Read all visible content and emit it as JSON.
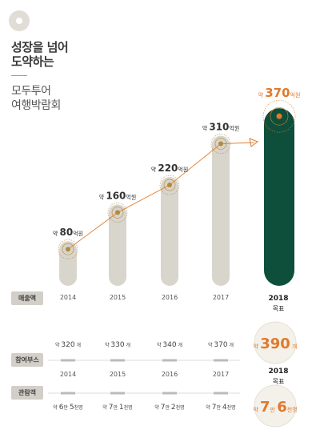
{
  "brand": {
    "logo_icon": "circle-logo-icon"
  },
  "headline": {
    "line1": "성장을 넘어",
    "line2": "도약하는"
  },
  "subhead": {
    "line1": "모두투어",
    "line2": "여행박람회"
  },
  "colors": {
    "pillar": "#d8d5cc",
    "target_pillar": "#0e4f3c",
    "accent": "#e07a2c",
    "gold": "#b48a3e"
  },
  "labels": {
    "revenue": "매출액",
    "booths": "참여부스",
    "visitors": "관람객",
    "target_word": "목표",
    "approx": "약",
    "eok": "억원",
    "booth_unit": "개",
    "man": "만",
    "people": "천명"
  },
  "chart_data": {
    "type": "bar",
    "categories": [
      "2014",
      "2015",
      "2016",
      "2017",
      "2018"
    ],
    "target_category": "2018",
    "series": [
      {
        "name": "매출액",
        "unit": "억원",
        "values": [
          80,
          160,
          220,
          310,
          370
        ]
      },
      {
        "name": "참여부스",
        "unit": "개",
        "values": [
          320,
          330,
          340,
          370,
          390
        ]
      },
      {
        "name": "관람객",
        "values_man": [
          6,
          7,
          7,
          7,
          7
        ],
        "values_cheon": [
          5,
          1,
          2,
          4,
          6
        ]
      }
    ],
    "ylim": [
      0,
      400
    ],
    "legend": "none",
    "grid": false
  }
}
